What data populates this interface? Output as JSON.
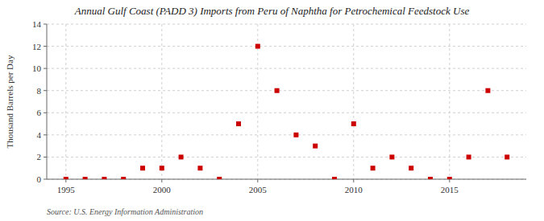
{
  "chart_data": {
    "type": "scatter",
    "title": "Annual Gulf Coast (PADD 3) Imports from Peru of Naphtha for Petrochemical Feedstock Use",
    "y_label": "Thousand Barrels per Day",
    "annotation": "Source: U.S. Energy Information Administration",
    "x": [
      1995,
      1996,
      1997,
      1998,
      1999,
      2000,
      2001,
      2002,
      2003,
      2004,
      2005,
      2006,
      2007,
      2008,
      2009,
      2010,
      2011,
      2012,
      2013,
      2014,
      2015,
      2016,
      2017,
      2018
    ],
    "values": [
      0,
      0,
      0,
      0,
      1,
      1,
      2,
      1,
      0,
      5,
      12,
      8,
      4,
      3,
      0,
      5,
      1,
      2,
      1,
      0,
      0,
      2,
      8,
      2
    ],
    "color": "#cc0000",
    "marker": "square",
    "xlim": [
      1994,
      2019
    ],
    "ylim": [
      0,
      14
    ],
    "xticks": [
      1995,
      2000,
      2005,
      2010,
      2015
    ],
    "yticks": [
      0,
      2,
      4,
      6,
      8,
      10,
      12,
      14
    ],
    "grid": true
  }
}
